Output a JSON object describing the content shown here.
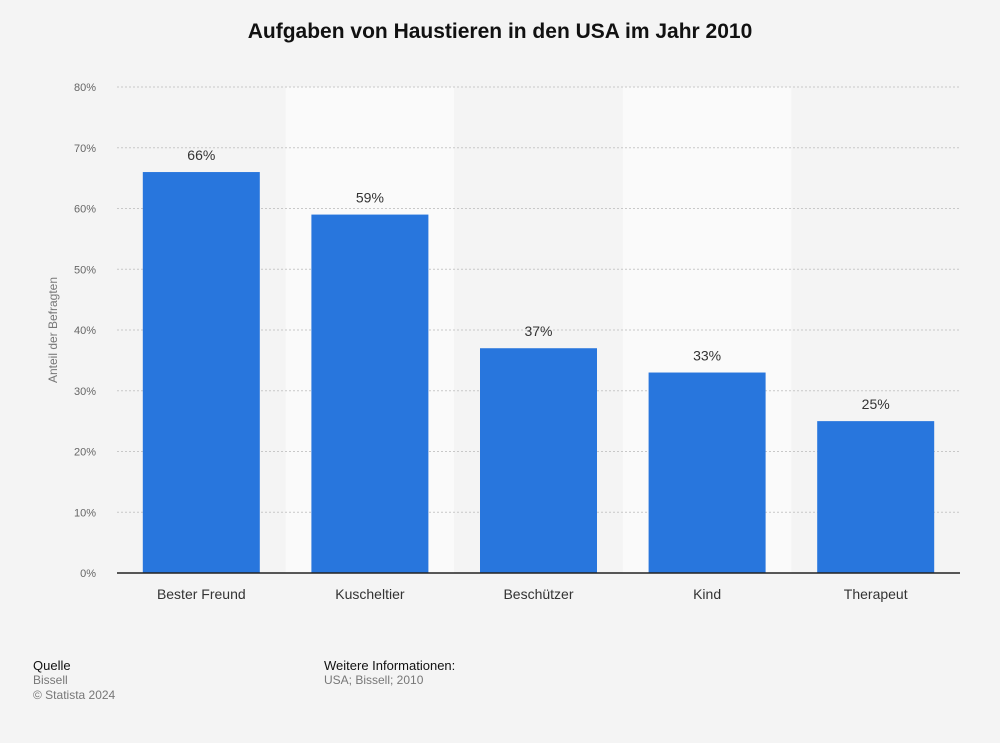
{
  "chart_data": {
    "type": "bar",
    "title": "Aufgaben von Haustieren in den USA im Jahr 2010",
    "ylabel": "Anteil der Befragten",
    "xlabel": "",
    "categories": [
      "Bester Freund",
      "Kuscheltier",
      "Beschützer",
      "Kind",
      "Therapeut"
    ],
    "values": [
      66,
      59,
      37,
      33,
      25
    ],
    "value_labels": [
      "66%",
      "59%",
      "37%",
      "33%",
      "25%"
    ],
    "ylim": [
      0,
      80
    ],
    "yticks": [
      "0%",
      "10%",
      "20%",
      "30%",
      "40%",
      "50%",
      "60%",
      "70%",
      "80%"
    ],
    "grid": true,
    "bar_color": "#2876dd"
  },
  "footer": {
    "source_heading": "Quelle",
    "source_value": "Bissell",
    "copyright": "© Statista 2024",
    "info_heading": "Weitere Informationen:",
    "info_value": "USA; Bissell; 2010"
  }
}
